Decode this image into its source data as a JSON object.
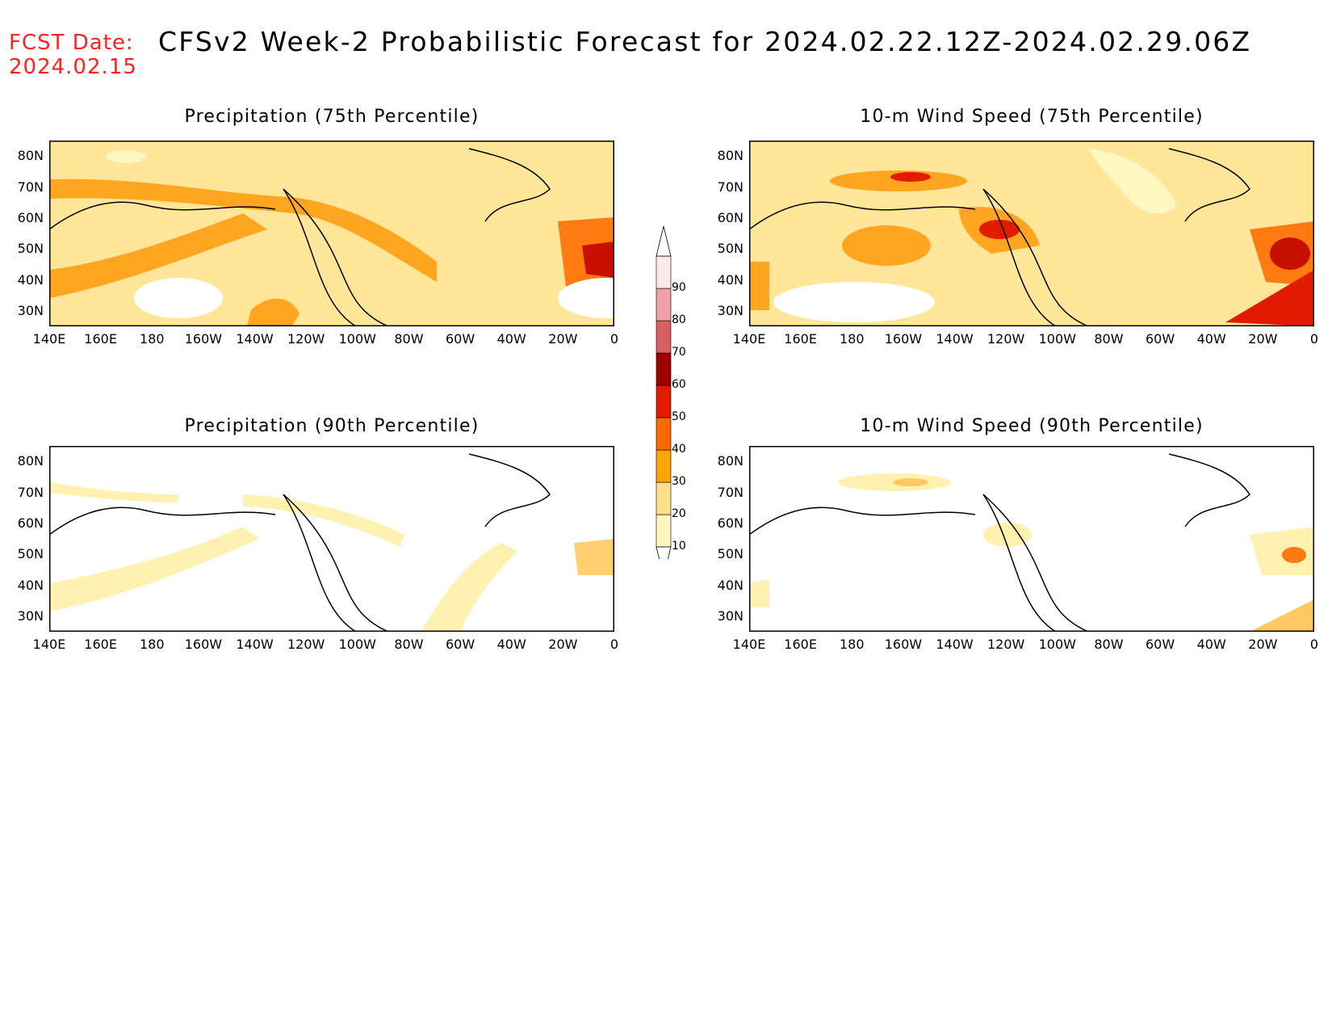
{
  "header": {
    "fcst_label": "FCST Date:",
    "fcst_date": "2024.02.15",
    "title": "CFSv2 Week-2 Probabilistic Forecast for 2024.02.22.12Z-2024.02.29.06Z"
  },
  "axes": {
    "lat_labels": [
      "80N",
      "70N",
      "60N",
      "50N",
      "40N",
      "30N"
    ],
    "lon_labels": [
      "140E",
      "160E",
      "180",
      "160W",
      "140W",
      "120W",
      "100W",
      "80W",
      "60W",
      "40W",
      "20W",
      "0"
    ]
  },
  "panels": [
    {
      "title": "Precipitation (75th Percentile)",
      "level": 3
    },
    {
      "title": "10-m Wind Speed (75th Percentile)",
      "level": 3
    },
    {
      "title": "Precipitation (90th Percentile)",
      "level": 1
    },
    {
      "title": "10-m Wind Speed (90th Percentile)",
      "level": 1
    }
  ],
  "colorbar": {
    "levels": [
      "10",
      "20",
      "30",
      "40",
      "50",
      "60",
      "70",
      "80",
      "90"
    ],
    "colors": [
      "#fff6c0",
      "#ffe08a",
      "#ffa500",
      "#ff6a00",
      "#e21a00",
      "#9e0000",
      "#d86060",
      "#f0a0a8",
      "#ffe8ea"
    ]
  }
}
